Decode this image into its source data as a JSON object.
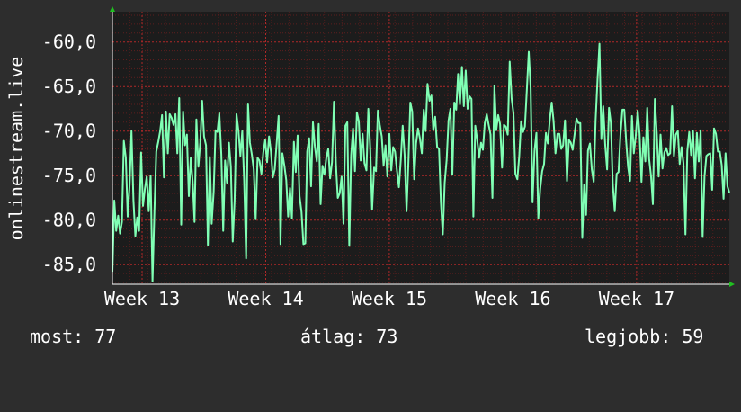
{
  "chart_data": {
    "type": "line",
    "ylabel": "onlinestream.live",
    "ylim": [
      -87.2,
      -56.6
    ],
    "yticks": [
      {
        "value": -60,
        "label": "-60,0"
      },
      {
        "value": -65,
        "label": "-65,0"
      },
      {
        "value": -70,
        "label": "-70,0"
      },
      {
        "value": -75,
        "label": "-75,0"
      },
      {
        "value": -80,
        "label": "-80,0"
      },
      {
        "value": -85,
        "label": "-85,0"
      }
    ],
    "xlim": [
      12.0,
      16.99
    ],
    "xticks": [
      {
        "value": 12.24,
        "label": "Week 13"
      },
      {
        "value": 13.24,
        "label": "Week 14"
      },
      {
        "value": 14.24,
        "label": "Week 15"
      },
      {
        "value": 15.24,
        "label": "Week 16"
      },
      {
        "value": 16.24,
        "label": "Week 17"
      }
    ],
    "grid": true,
    "colors": {
      "background": "#2d2d2d",
      "plot": "#1c1c1c",
      "grid": "#8a2020",
      "line": "#80ffb4",
      "axis_arrow": "#20c020"
    },
    "series": [
      {
        "values": [
          -85.8,
          -77.8,
          -81.2,
          -79.5,
          -81.5,
          -80.2,
          -71.1,
          -73.0,
          -79.6,
          -76.1,
          -70.0,
          -77.8,
          -81.8,
          -79.7,
          -81.2,
          -72.4,
          -78.4,
          -76.5,
          -75.1,
          -79.0,
          -75.0,
          -86.9,
          -79.1,
          -72.3,
          -71.2,
          -70.0,
          -68.2,
          -75.2,
          -67.8,
          -72.5,
          -68.1,
          -68.5,
          -69.3,
          -68.1,
          -72.5,
          -66.3,
          -80.5,
          -67.8,
          -71.6,
          -70.4,
          -77.3,
          -73.0,
          -75.6,
          -80.2,
          -68.7,
          -74.0,
          -71.3,
          -66.6,
          -70.6,
          -71.6,
          -82.8,
          -72.9,
          -80.4,
          -76.8,
          -69.9,
          -70.1,
          -68.0,
          -72.6,
          -81.2,
          -73.3,
          -75.8,
          -71.3,
          -74.0,
          -82.4,
          -77.8,
          -68.1,
          -70.0,
          -72.8,
          -70.0,
          -75.5,
          -84.3,
          -67.0,
          -71.3,
          -72.6,
          -74.3,
          -79.9,
          -73.0,
          -73.3,
          -74.8,
          -72.4,
          -71.0,
          -73.5,
          -70.6,
          -72.3,
          -75.2,
          -74.3,
          -71.3,
          -68.3,
          -82.7,
          -72.5,
          -73.8,
          -75.5,
          -79.6,
          -76.4,
          -79.8,
          -71.2,
          -74.6,
          -70.5,
          -77.3,
          -79.1,
          -82.7,
          -82.6,
          -72.3,
          -70.8,
          -76.2,
          -69.0,
          -71.7,
          -73.4,
          -69.2,
          -78.2,
          -73.9,
          -74.9,
          -73.0,
          -72.0,
          -75.3,
          -73.5,
          -66.7,
          -73.6,
          -77.5,
          -77.0,
          -75.1,
          -80.4,
          -69.4,
          -69.0,
          -82.9,
          -72.7,
          -69.7,
          -74.5,
          -67.9,
          -68.9,
          -73.3,
          -70.3,
          -73.6,
          -74.4,
          -67.5,
          -71.9,
          -78.8,
          -74.1,
          -74.5,
          -67.7,
          -69.3,
          -70.6,
          -73.9,
          -71.6,
          -75.1,
          -70.3,
          -74.4,
          -71.8,
          -72.3,
          -74.5,
          -76.3,
          -73.2,
          -69.4,
          -72.6,
          -79.0,
          -73.4,
          -66.8,
          -67.8,
          -75.4,
          -71.4,
          -69.7,
          -70.8,
          -72.5,
          -67.6,
          -70.0,
          -64.7,
          -66.6,
          -66.0,
          -69.9,
          -68.4,
          -71.8,
          -72.0,
          -78.0,
          -81.6,
          -75.8,
          -73.2,
          -68.8,
          -67.5,
          -74.9,
          -66.8,
          -67.6,
          -63.6,
          -67.0,
          -62.8,
          -67.2,
          -63.2,
          -67.5,
          -66.1,
          -66.4,
          -79.6,
          -69.4,
          -71.0,
          -73.0,
          -71.3,
          -72.1,
          -69.1,
          -68.1,
          -69.3,
          -70.4,
          -77.5,
          -64.9,
          -69.9,
          -68.2,
          -69.2,
          -74.1,
          -69.3,
          -69.5,
          -70.4,
          -62.2,
          -66.3,
          -68.0,
          -74.8,
          -75.4,
          -72.8,
          -68.9,
          -70.1,
          -69.5,
          -65.3,
          -61.1,
          -65.2,
          -78.0,
          -72.2,
          -70.2,
          -79.8,
          -76.5,
          -74.5,
          -73.7,
          -70.2,
          -71.4,
          -68.7,
          -66.8,
          -68.9,
          -72.5,
          -70.3,
          -70.3,
          -72.0,
          -71.6,
          -68.8,
          -75.6,
          -71.0,
          -71.3,
          -72.1,
          -70.3,
          -68.6,
          -69.1,
          -69.1,
          -82.0,
          -76.0,
          -79.4,
          -72.2,
          -71.4,
          -74.3,
          -75.7,
          -68.8,
          -64.1,
          -60.2,
          -70.9,
          -67.2,
          -71.6,
          -74.3,
          -67.4,
          -69.1,
          -76.0,
          -79.0,
          -74.8,
          -74.6,
          -70.5,
          -67.6,
          -67.6,
          -71.2,
          -74.0,
          -75.6,
          -68.3,
          -72.5,
          -70.6,
          -67.7,
          -70.3,
          -75.7,
          -70.7,
          -73.4,
          -67.4,
          -73.1,
          -75.0,
          -78.2,
          -66.4,
          -70.2,
          -75.1,
          -70.4,
          -74.2,
          -72.4,
          -71.9,
          -72.7,
          -72.5,
          -67.2,
          -72.8,
          -70.4,
          -70.0,
          -73.7,
          -71.8,
          -73.6,
          -81.6,
          -72.2,
          -70.1,
          -72.7,
          -70.0,
          -75.3,
          -70.2,
          -73.4,
          -69.9,
          -81.9,
          -75.1,
          -72.8,
          -72.6,
          -72.5,
          -76.6,
          -69.7,
          -70.3,
          -72.3,
          -72.3,
          -73.8,
          -77.6,
          -72.5,
          -76.2,
          -76.9
        ]
      }
    ]
  },
  "stats": {
    "current": "most: 77",
    "average": "átlag: 73",
    "best": "legjobb: 59"
  }
}
